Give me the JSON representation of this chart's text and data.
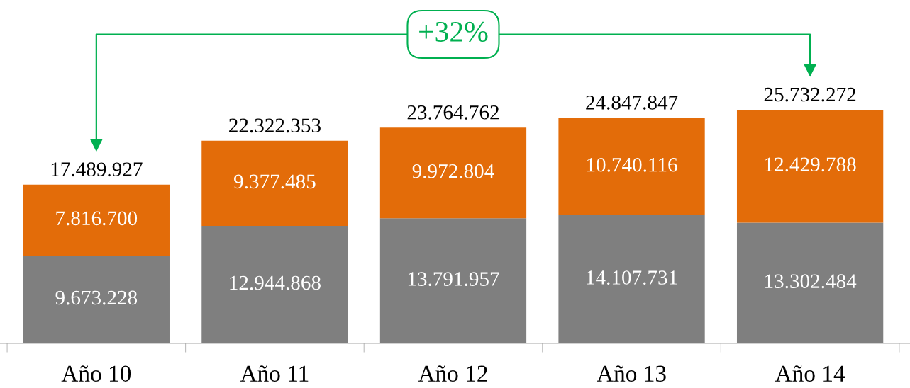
{
  "chart_data": {
    "type": "bar",
    "stacked": true,
    "categories": [
      "Año 10",
      "Año 11",
      "Año 12",
      "Año 13",
      "Año 14"
    ],
    "series": [
      {
        "color": "#7f7f7f",
        "values": [
          9673228,
          12944868,
          13791957,
          14107731,
          13302484
        ],
        "value_labels": [
          "9.673.228",
          "12.944.868",
          "13.791.957",
          "14.107.731",
          "13.302.484"
        ]
      },
      {
        "color": "#e36c09",
        "values": [
          7816700,
          9377485,
          9972804,
          10740116,
          12429788
        ],
        "value_labels": [
          "7.816.700",
          "9.377.485",
          "9.972.804",
          "10.740.116",
          "12.429.788"
        ]
      }
    ],
    "totals": [
      "17.489.927",
      "22.322.353",
      "23.764.762",
      "24.847.847",
      "25.732.272"
    ],
    "tick_labels": "x",
    "grid": false,
    "legend": false,
    "annotations": [
      "+32%"
    ]
  }
}
